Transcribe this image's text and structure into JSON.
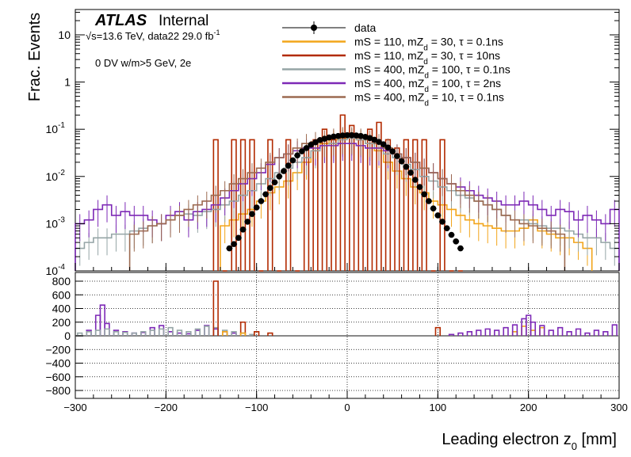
{
  "chart_data": {
    "type": "histogram",
    "experiment": "ATLAS",
    "status": "Internal",
    "energy_text": "√s=13.6 TeV, data22 29.0 fb",
    "lumi_exponent": "-1",
    "selection_text": "0 DV w/m>5 GeV, 2e",
    "ylabel_top": "Frac. Events",
    "xlabel": "Leading electron z",
    "xlabel_sub": "0",
    "xlabel_unit": " [mm]",
    "xlim": [
      -300,
      300
    ],
    "ylim_top": [
      0.0001,
      40
    ],
    "ylim_bottom": [
      -900,
      900
    ],
    "y_log_top": true,
    "x_ticks": [
      -300,
      -200,
      -100,
      0,
      100,
      200,
      300
    ],
    "y_ticks_top": [
      {
        "value": 10,
        "label": "10"
      },
      {
        "value": 1,
        "label": "1"
      },
      {
        "value": 0.1,
        "label": "10",
        "exp": "-1"
      },
      {
        "value": 0.01,
        "label": "10",
        "exp": "-2"
      },
      {
        "value": 0.001,
        "label": "10",
        "exp": "-3"
      },
      {
        "value": 0.0001,
        "label": "10",
        "exp": "-4"
      }
    ],
    "y_ticks_bottom": [
      800,
      600,
      400,
      200,
      0,
      -200,
      -400,
      -600,
      -800
    ],
    "grid_bottom": true,
    "legend_position": "top-center",
    "legend": [
      {
        "pre": "data",
        "sub": "",
        "post": "",
        "color": "#000000",
        "marker": "point"
      },
      {
        "pre": "mS = 110, mZ",
        "sub": "d",
        "post": " = 30, τ = 0.1ns",
        "color": "#f2a51a"
      },
      {
        "pre": "mS = 110, mZ",
        "sub": "d",
        "post": " = 30, τ = 10ns",
        "color": "#b22a00"
      },
      {
        "pre": "mS = 400, mZ",
        "sub": "d",
        "post": " = 100, τ = 0.1ns",
        "color": "#95a5a6"
      },
      {
        "pre": "mS = 400, mZ",
        "sub": "d",
        "post": " = 100, τ = 2ns",
        "color": "#7d29b6"
      },
      {
        "pre": "mS = 400, mZ",
        "sub": "d",
        "post": " = 10, τ = 0.1ns",
        "color": "#9c6a50"
      }
    ],
    "data_points": {
      "x": [
        -130,
        -125,
        -120,
        -115,
        -110,
        -105,
        -100,
        -95,
        -90,
        -85,
        -80,
        -75,
        -70,
        -65,
        -60,
        -55,
        -50,
        -45,
        -40,
        -35,
        -30,
        -25,
        -20,
        -15,
        -10,
        -5,
        0,
        5,
        10,
        15,
        20,
        25,
        30,
        35,
        40,
        45,
        50,
        55,
        60,
        65,
        70,
        75,
        80,
        85,
        90,
        95,
        100,
        105,
        110,
        115,
        120,
        125
      ],
      "y": [
        0.0003,
        0.00037,
        0.0005,
        0.00075,
        0.0011,
        0.0016,
        0.0022,
        0.003,
        0.0042,
        0.0057,
        0.0075,
        0.01,
        0.013,
        0.017,
        0.022,
        0.028,
        0.034,
        0.04,
        0.047,
        0.053,
        0.059,
        0.063,
        0.067,
        0.07,
        0.072,
        0.074,
        0.075,
        0.075,
        0.074,
        0.072,
        0.069,
        0.065,
        0.06,
        0.054,
        0.048,
        0.041,
        0.034,
        0.027,
        0.021,
        0.016,
        0.012,
        0.0085,
        0.006,
        0.0042,
        0.003,
        0.0021,
        0.0015,
        0.0011,
        0.0008,
        0.00058,
        0.00042,
        0.0003
      ]
    },
    "series": [
      {
        "name": "mS = 110, mZd = 30, τ = 0.1ns",
        "color": "#f2a51a",
        "x": [
          -135,
          -125,
          -115,
          -105,
          -95,
          -85,
          -75,
          -65,
          -55,
          -45,
          -35,
          -25,
          -15,
          -5,
          5,
          15,
          25,
          35,
          45,
          55,
          65,
          75,
          85,
          95,
          105,
          115,
          125,
          135,
          145,
          155,
          165,
          175,
          185,
          195,
          205,
          215,
          225,
          235,
          245,
          255,
          265
        ],
        "y": [
          0.0009,
          0.0012,
          0.0016,
          0.002,
          0.003,
          0.0045,
          0.006,
          0.008,
          0.012,
          0.02,
          0.035,
          0.05,
          0.06,
          0.065,
          0.065,
          0.06,
          0.05,
          0.035,
          0.02,
          0.013,
          0.009,
          0.006,
          0.0045,
          0.003,
          0.0025,
          0.002,
          0.0015,
          0.0012,
          0.001,
          0.0009,
          0.0008,
          0.0007,
          0.0007,
          0.0008,
          0.0012,
          0.0007,
          0.0006,
          0.0005,
          0.0005,
          0.0004,
          0.0003
        ]
      },
      {
        "name": "mS = 110, mZd = 30, τ = 10ns",
        "color": "#b22a00",
        "x": [
          -145,
          -135,
          -125,
          -115,
          -105,
          -95,
          -85,
          -75,
          -65,
          -55,
          -45,
          -35,
          -25,
          -15,
          -5,
          5,
          15,
          25,
          35,
          45,
          55,
          65,
          75,
          85,
          95,
          105,
          115,
          125
        ],
        "y": [
          0.06,
          0.0001,
          0.06,
          0.06,
          0.06,
          0.0001,
          0.06,
          0.0001,
          0.06,
          0.0001,
          0.04,
          0.06,
          0.1,
          0.06,
          0.2,
          0.12,
          0.06,
          0.1,
          0.14,
          0.06,
          0.04,
          0.06,
          0.06,
          0.06,
          0.0001,
          0.06,
          0.0001,
          0.0001
        ]
      },
      {
        "name": "mS = 400, mZd = 100, τ = 0.1ns",
        "color": "#95a5a6",
        "x": [
          -295,
          -285,
          -275,
          -265,
          -255,
          -245,
          -235,
          -225,
          -215,
          -205,
          -195,
          -185,
          -175,
          -165,
          -155,
          -145,
          -135,
          -125,
          -115,
          -105,
          -95,
          -85,
          -75,
          -65,
          -55,
          -45,
          -35,
          -25,
          -15,
          -5,
          5,
          15,
          25,
          35,
          45,
          55,
          65,
          75,
          85,
          95,
          105,
          115,
          125,
          135,
          145,
          155,
          165,
          175,
          185,
          195,
          205,
          215,
          225,
          235,
          245,
          255,
          265,
          275,
          285,
          295
        ],
        "y": [
          0.0003,
          0.0004,
          0.0005,
          0.0005,
          0.0006,
          0.0006,
          0.0007,
          0.0008,
          0.0009,
          0.001,
          0.0012,
          0.0015,
          0.0016,
          0.0015,
          0.0018,
          0.002,
          0.0025,
          0.003,
          0.004,
          0.005,
          0.007,
          0.009,
          0.012,
          0.015,
          0.02,
          0.025,
          0.035,
          0.045,
          0.05,
          0.06,
          0.065,
          0.06,
          0.05,
          0.04,
          0.03,
          0.025,
          0.018,
          0.014,
          0.01,
          0.008,
          0.006,
          0.005,
          0.004,
          0.0035,
          0.003,
          0.0025,
          0.002,
          0.0015,
          0.0012,
          0.0012,
          0.001,
          0.0009,
          0.0008,
          0.0008,
          0.0007,
          0.0006,
          0.0005,
          0.0005,
          0.0004,
          0.0003
        ]
      },
      {
        "name": "mS = 400, mZd = 100, τ = 2ns",
        "color": "#7d29b6",
        "x": [
          -295,
          -285,
          -275,
          -265,
          -255,
          -245,
          -235,
          -225,
          -215,
          -205,
          -195,
          -185,
          -175,
          -165,
          -155,
          -145,
          -135,
          -125,
          -115,
          -105,
          -95,
          -85,
          -75,
          -65,
          -55,
          -45,
          -35,
          -25,
          -15,
          -5,
          5,
          15,
          25,
          35,
          45,
          55,
          65,
          75,
          85,
          95,
          105,
          115,
          125,
          135,
          145,
          155,
          165,
          175,
          185,
          195,
          205,
          215,
          225,
          235,
          245,
          255,
          265,
          275,
          285,
          295
        ],
        "y": [
          0.001,
          0.0012,
          0.002,
          0.0025,
          0.0015,
          0.0018,
          0.0015,
          0.0015,
          0.0012,
          0.001,
          0.0015,
          0.0018,
          0.0012,
          0.0018,
          0.002,
          0.0025,
          0.0035,
          0.005,
          0.007,
          0.009,
          0.012,
          0.018,
          0.025,
          0.03,
          0.035,
          0.04,
          0.04,
          0.045,
          0.045,
          0.05,
          0.05,
          0.045,
          0.04,
          0.04,
          0.035,
          0.03,
          0.025,
          0.02,
          0.015,
          0.012,
          0.009,
          0.007,
          0.006,
          0.005,
          0.004,
          0.0035,
          0.003,
          0.0025,
          0.0025,
          0.003,
          0.0025,
          0.002,
          0.0015,
          0.002,
          0.0018,
          0.0012,
          0.0015,
          0.0012,
          0.001,
          0.002
        ]
      },
      {
        "name": "mS = 400, mZd = 10, τ = 0.1ns",
        "color": "#9c6a50",
        "x": [
          -235,
          -225,
          -215,
          -205,
          -195,
          -185,
          -175,
          -165,
          -155,
          -145,
          -135,
          -125,
          -115,
          -105,
          -95,
          -85,
          -75,
          -65,
          -55,
          -45,
          -35,
          -25,
          -15,
          -5,
          5,
          15,
          25,
          35,
          45,
          55,
          65,
          75,
          85,
          95,
          105,
          115,
          125,
          135,
          145,
          155,
          165,
          175,
          185,
          195,
          205,
          215,
          225,
          235
        ],
        "y": [
          0.0006,
          0.0007,
          0.0009,
          0.001,
          0.0012,
          0.0015,
          0.002,
          0.0025,
          0.003,
          0.004,
          0.005,
          0.007,
          0.009,
          0.012,
          0.015,
          0.02,
          0.025,
          0.03,
          0.04,
          0.05,
          0.055,
          0.06,
          0.065,
          0.07,
          0.07,
          0.065,
          0.06,
          0.05,
          0.04,
          0.03,
          0.025,
          0.02,
          0.015,
          0.012,
          0.009,
          0.007,
          0.005,
          0.004,
          0.003,
          0.0025,
          0.002,
          0.0015,
          0.0012,
          0.001,
          0.0009,
          0.0008,
          0.0007,
          0.0006
        ]
      }
    ],
    "ratio_series": [
      {
        "color": "#7d29b6",
        "x": [
          -285,
          -275,
          -270,
          -265,
          -255,
          -245,
          -235,
          -225,
          -215,
          -205,
          -195,
          -185,
          -175,
          -165,
          -155,
          -145,
          -135,
          -125
        ],
        "y": [
          80,
          300,
          450,
          180,
          80,
          60,
          40,
          50,
          120,
          150,
          60,
          40,
          30,
          80,
          150,
          100,
          60,
          40
        ]
      },
      {
        "color": "#95a5a6",
        "x": [
          -295,
          -285,
          -275,
          -265,
          -255,
          -245,
          -235,
          -225,
          -215,
          -205,
          -195,
          -185,
          -175,
          -165,
          -155,
          -145,
          -135,
          -125,
          -115,
          -105
        ],
        "y": [
          40,
          60,
          80,
          100,
          60,
          50,
          40,
          60,
          80,
          100,
          120,
          80,
          60,
          100,
          140,
          120,
          80,
          60,
          40,
          20
        ]
      },
      {
        "color": "#b22a00",
        "x": [
          -145,
          -115,
          -100,
          -85,
          100
        ],
        "y": [
          800,
          200,
          60,
          40,
          120
        ]
      },
      {
        "color": "#f2a51a",
        "x": [
          -135,
          -115,
          185,
          195,
          205,
          215
        ],
        "y": [
          60,
          40,
          60,
          140,
          80,
          120
        ]
      },
      {
        "color": "#7d29b6",
        "x": [
          115,
          125,
          135,
          145,
          155,
          165,
          175,
          185,
          195,
          200,
          205,
          215,
          225,
          235,
          245,
          255,
          265,
          275,
          285,
          295
        ],
        "y": [
          20,
          40,
          60,
          80,
          100,
          80,
          120,
          160,
          250,
          300,
          200,
          150,
          80,
          120,
          60,
          100,
          40,
          80,
          60,
          160
        ]
      }
    ]
  }
}
